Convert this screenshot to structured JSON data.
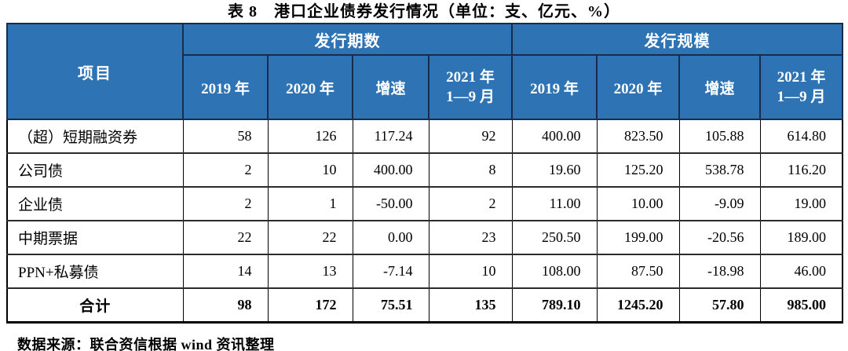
{
  "title": "表 8　港口企业债券发行情况（单位：支、亿元、%）",
  "colors": {
    "header_bg": "#2E74B5",
    "header_text": "#FFFFFF",
    "border_dark": "#1A2C4E",
    "body_border": "#000000"
  },
  "header": {
    "item": "项目",
    "groups": [
      {
        "label": "发行期数"
      },
      {
        "label": "发行规模"
      }
    ],
    "subcols": [
      {
        "label": "2019 年"
      },
      {
        "label": "2020 年"
      },
      {
        "label": "增速"
      },
      {
        "label": "2021 年",
        "label2": "1—9 月"
      }
    ]
  },
  "table": {
    "rows": [
      {
        "label": "（超）短期融资券",
        "values": [
          "58",
          "126",
          "117.24",
          "92",
          "400.00",
          "823.50",
          "105.88",
          "614.80"
        ]
      },
      {
        "label": "公司债",
        "values": [
          "2",
          "10",
          "400.00",
          "8",
          "19.60",
          "125.20",
          "538.78",
          "116.20"
        ]
      },
      {
        "label": "企业债",
        "values": [
          "2",
          "1",
          "-50.00",
          "2",
          "11.00",
          "10.00",
          "-9.09",
          "19.00"
        ]
      },
      {
        "label": "中期票据",
        "values": [
          "22",
          "22",
          "0.00",
          "23",
          "250.50",
          "199.00",
          "-20.56",
          "189.00"
        ]
      },
      {
        "label": "PPN+私募债",
        "values": [
          "14",
          "13",
          "-7.14",
          "10",
          "108.00",
          "87.50",
          "-18.98",
          "46.00"
        ]
      }
    ],
    "total_row": {
      "label": "合计",
      "values": [
        "98",
        "172",
        "75.51",
        "135",
        "789.10",
        "1245.20",
        "57.80",
        "985.00"
      ]
    }
  },
  "source": "数据来源：联合资信根据 wind 资讯整理"
}
